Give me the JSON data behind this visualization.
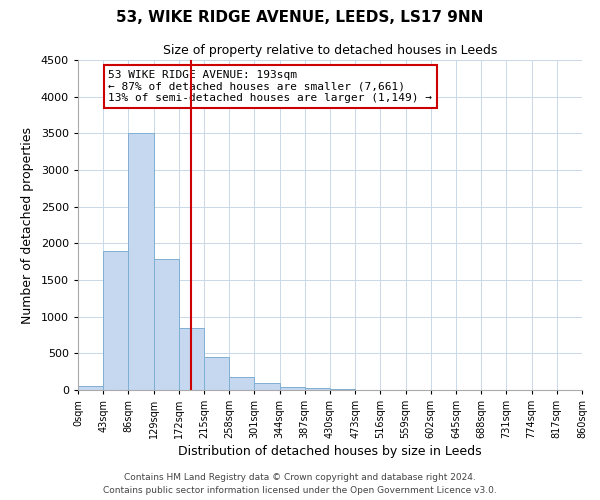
{
  "title": "53, WIKE RIDGE AVENUE, LEEDS, LS17 9NN",
  "subtitle": "Size of property relative to detached houses in Leeds",
  "xlabel": "Distribution of detached houses by size in Leeds",
  "ylabel": "Number of detached properties",
  "bin_edges": [
    0,
    43,
    86,
    129,
    172,
    215,
    258,
    301,
    344,
    387,
    430,
    473,
    516,
    559,
    602,
    645,
    688,
    731,
    774,
    817,
    860
  ],
  "bar_heights": [
    50,
    1900,
    3500,
    1780,
    850,
    450,
    175,
    90,
    40,
    25,
    10,
    0,
    0,
    0,
    0,
    0,
    0,
    0,
    0,
    0
  ],
  "bar_color": "#c5d8f0",
  "bar_edgecolor": "#7fafd4",
  "property_line_x": 193,
  "property_line_color": "#cc0000",
  "annotation_line1": "53 WIKE RIDGE AVENUE: 193sqm",
  "annotation_line2": "← 87% of detached houses are smaller (7,661)",
  "annotation_line3": "13% of semi-detached houses are larger (1,149) →",
  "annotation_box_color": "#cc0000",
  "ylim": [
    0,
    4500
  ],
  "yticks": [
    0,
    500,
    1000,
    1500,
    2000,
    2500,
    3000,
    3500,
    4000,
    4500
  ],
  "tick_labels": [
    "0sqm",
    "43sqm",
    "86sqm",
    "129sqm",
    "172sqm",
    "215sqm",
    "258sqm",
    "301sqm",
    "344sqm",
    "387sqm",
    "430sqm",
    "473sqm",
    "516sqm",
    "559sqm",
    "602sqm",
    "645sqm",
    "688sqm",
    "731sqm",
    "774sqm",
    "817sqm",
    "860sqm"
  ],
  "footer_line1": "Contains HM Land Registry data © Crown copyright and database right 2024.",
  "footer_line2": "Contains public sector information licensed under the Open Government Licence v3.0.",
  "background_color": "#ffffff",
  "grid_color": "#c8d8e8"
}
